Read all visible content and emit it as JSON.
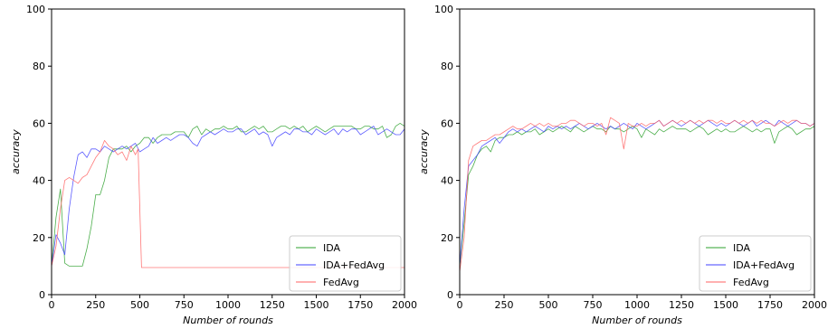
{
  "chart_data": [
    {
      "type": "line",
      "xlabel": "Number of rounds",
      "ylabel": "accuracy",
      "xlim": [
        0,
        2000
      ],
      "ylim": [
        0,
        100
      ],
      "xticks": [
        0,
        250,
        500,
        750,
        1000,
        1250,
        1500,
        1750,
        2000
      ],
      "yticks": [
        0,
        20,
        40,
        60,
        80,
        100
      ],
      "grid": false,
      "legend_position": "lower-right",
      "series": [
        {
          "name": "IDA",
          "color": "#2ca02c",
          "x": [
            0,
            25,
            50,
            75,
            100,
            125,
            150,
            175,
            200,
            225,
            250,
            275,
            300,
            325,
            350,
            375,
            400,
            425,
            450,
            475,
            500,
            525,
            550,
            575,
            600,
            625,
            650,
            675,
            700,
            725,
            750,
            775,
            800,
            825,
            850,
            875,
            900,
            925,
            950,
            975,
            1000,
            1025,
            1050,
            1075,
            1100,
            1125,
            1150,
            1175,
            1200,
            1225,
            1250,
            1275,
            1300,
            1325,
            1350,
            1375,
            1400,
            1425,
            1450,
            1475,
            1500,
            1525,
            1550,
            1575,
            1600,
            1625,
            1650,
            1675,
            1700,
            1725,
            1750,
            1775,
            1800,
            1825,
            1850,
            1875,
            1900,
            1925,
            1950,
            1975,
            2000
          ],
          "y": [
            10,
            27,
            37,
            11,
            10,
            10,
            10,
            10,
            16,
            24,
            35,
            35,
            40,
            48,
            51,
            51,
            51,
            52,
            50,
            52,
            53,
            55,
            55,
            53,
            55,
            56,
            56,
            56,
            57,
            57,
            57,
            55,
            58,
            59,
            56,
            58,
            57,
            58,
            58,
            59,
            58,
            58,
            59,
            57,
            57,
            58,
            59,
            58,
            59,
            57,
            57,
            58,
            59,
            59,
            58,
            59,
            58,
            59,
            57,
            58,
            59,
            58,
            57,
            58,
            59,
            59,
            59,
            59,
            59,
            58,
            58,
            59,
            59,
            58,
            58,
            59,
            55,
            56,
            59,
            60,
            59
          ]
        },
        {
          "name": "IDA+FedAvg",
          "color": "#4040ff",
          "x": [
            0,
            25,
            50,
            75,
            100,
            125,
            150,
            175,
            200,
            225,
            250,
            275,
            300,
            325,
            350,
            375,
            400,
            425,
            450,
            475,
            500,
            525,
            550,
            575,
            600,
            625,
            650,
            675,
            700,
            725,
            750,
            775,
            800,
            825,
            850,
            875,
            900,
            925,
            950,
            975,
            1000,
            1025,
            1050,
            1075,
            1100,
            1125,
            1150,
            1175,
            1200,
            1225,
            1250,
            1275,
            1300,
            1325,
            1350,
            1375,
            1400,
            1425,
            1450,
            1475,
            1500,
            1525,
            1550,
            1575,
            1600,
            1625,
            1650,
            1675,
            1700,
            1725,
            1750,
            1775,
            1800,
            1825,
            1850,
            1875,
            1900,
            1925,
            1950,
            1975,
            2000
          ],
          "y": [
            10,
            21,
            18,
            14,
            30,
            41,
            49,
            50,
            48,
            51,
            51,
            50,
            52,
            51,
            50,
            51,
            52,
            51,
            52,
            53,
            50,
            51,
            52,
            55,
            53,
            54,
            55,
            54,
            55,
            56,
            56,
            55,
            53,
            52,
            55,
            56,
            57,
            56,
            57,
            58,
            57,
            57,
            58,
            58,
            56,
            57,
            58,
            56,
            57,
            56,
            52,
            55,
            56,
            57,
            56,
            58,
            58,
            57,
            57,
            56,
            58,
            57,
            56,
            57,
            58,
            56,
            58,
            57,
            58,
            58,
            56,
            57,
            58,
            59,
            56,
            57,
            58,
            57,
            56,
            56,
            58
          ]
        },
        {
          "name": "FedAvg",
          "color": "#ff6060",
          "x": [
            0,
            25,
            50,
            75,
            100,
            125,
            150,
            175,
            200,
            225,
            250,
            275,
            300,
            325,
            350,
            375,
            400,
            425,
            450,
            475,
            490,
            510,
            525,
            550,
            600,
            700,
            800,
            900,
            1000,
            1250,
            1500,
            1750,
            2000
          ],
          "y": [
            10,
            17,
            30,
            40,
            41,
            40,
            39,
            41,
            42,
            45,
            48,
            50,
            54,
            52,
            51,
            49,
            50,
            47,
            52,
            49,
            51,
            9.5,
            9.5,
            9.5,
            9.5,
            9.5,
            9.5,
            9.5,
            9.5,
            9.5,
            9.5,
            9.5,
            9.5
          ]
        }
      ]
    },
    {
      "type": "line",
      "xlabel": "Number of rounds",
      "ylabel": "accuracy",
      "xlim": [
        0,
        2000
      ],
      "ylim": [
        0,
        100
      ],
      "xticks": [
        0,
        250,
        500,
        750,
        1000,
        1250,
        1500,
        1750,
        2000
      ],
      "yticks": [
        0,
        20,
        40,
        60,
        80,
        100
      ],
      "grid": false,
      "legend_position": "lower-right",
      "series": [
        {
          "name": "IDA",
          "color": "#2ca02c",
          "x": [
            0,
            25,
            50,
            75,
            100,
            125,
            150,
            175,
            200,
            225,
            250,
            275,
            300,
            325,
            350,
            375,
            400,
            425,
            450,
            475,
            500,
            525,
            550,
            575,
            600,
            625,
            650,
            675,
            700,
            725,
            750,
            775,
            800,
            825,
            850,
            875,
            900,
            925,
            950,
            975,
            1000,
            1025,
            1050,
            1075,
            1100,
            1125,
            1150,
            1175,
            1200,
            1225,
            1250,
            1275,
            1300,
            1325,
            1350,
            1375,
            1400,
            1425,
            1450,
            1475,
            1500,
            1525,
            1550,
            1575,
            1600,
            1625,
            1650,
            1675,
            1700,
            1725,
            1750,
            1775,
            1800,
            1825,
            1850,
            1875,
            1900,
            1925,
            1950,
            1975,
            2000
          ],
          "y": [
            10,
            25,
            42,
            45,
            49,
            51,
            52,
            50,
            54,
            55,
            55,
            56,
            56,
            57,
            56,
            57,
            57,
            58,
            56,
            57,
            58,
            57,
            58,
            59,
            58,
            57,
            59,
            58,
            57,
            58,
            59,
            58,
            58,
            57,
            59,
            58,
            58,
            57,
            58,
            59,
            58,
            55,
            58,
            57,
            56,
            58,
            57,
            58,
            59,
            58,
            58,
            58,
            57,
            58,
            59,
            58,
            56,
            57,
            58,
            57,
            58,
            57,
            57,
            58,
            59,
            58,
            57,
            58,
            57,
            58,
            58,
            53,
            57,
            58,
            59,
            58,
            56,
            57,
            58,
            58,
            59
          ]
        },
        {
          "name": "IDA+FedAvg",
          "color": "#4040ff",
          "x": [
            0,
            25,
            50,
            75,
            100,
            125,
            150,
            175,
            200,
            225,
            250,
            275,
            300,
            325,
            350,
            375,
            400,
            425,
            450,
            475,
            500,
            525,
            550,
            575,
            600,
            625,
            650,
            675,
            700,
            725,
            750,
            775,
            800,
            825,
            850,
            875,
            900,
            925,
            950,
            975,
            1000,
            1025,
            1050,
            1075,
            1100,
            1125,
            1150,
            1175,
            1200,
            1225,
            1250,
            1275,
            1300,
            1325,
            1350,
            1375,
            1400,
            1425,
            1450,
            1475,
            1500,
            1525,
            1550,
            1575,
            1600,
            1625,
            1650,
            1675,
            1700,
            1725,
            1750,
            1775,
            1800,
            1825,
            1850,
            1875,
            1900,
            1925,
            1950,
            1975,
            2000
          ],
          "y": [
            10,
            30,
            45,
            47,
            49,
            52,
            53,
            54,
            55,
            53,
            55,
            57,
            58,
            57,
            58,
            57,
            58,
            59,
            58,
            57,
            59,
            58,
            59,
            58,
            59,
            58,
            59,
            60,
            59,
            58,
            59,
            60,
            59,
            58,
            59,
            58,
            59,
            60,
            59,
            58,
            60,
            59,
            58,
            59,
            60,
            61,
            59,
            60,
            61,
            60,
            59,
            60,
            61,
            60,
            59,
            60,
            61,
            60,
            59,
            60,
            59,
            60,
            61,
            60,
            59,
            60,
            61,
            59,
            60,
            61,
            60,
            59,
            61,
            60,
            59,
            60,
            61,
            60,
            60,
            59,
            60
          ]
        },
        {
          "name": "FedAvg",
          "color": "#ff6060",
          "x": [
            0,
            25,
            50,
            75,
            100,
            125,
            150,
            175,
            200,
            225,
            250,
            275,
            300,
            325,
            350,
            375,
            400,
            425,
            450,
            475,
            500,
            525,
            550,
            575,
            600,
            625,
            650,
            675,
            700,
            725,
            750,
            775,
            800,
            825,
            850,
            875,
            900,
            925,
            950,
            975,
            1000,
            1025,
            1050,
            1075,
            1100,
            1125,
            1150,
            1175,
            1200,
            1225,
            1250,
            1275,
            1300,
            1325,
            1350,
            1375,
            1400,
            1425,
            1450,
            1475,
            1500,
            1525,
            1550,
            1575,
            1600,
            1625,
            1650,
            1675,
            1700,
            1725,
            1750,
            1775,
            1800,
            1825,
            1850,
            1875,
            1900,
            1925,
            1950,
            1975,
            2000
          ],
          "y": [
            8,
            20,
            47,
            52,
            53,
            54,
            54,
            55,
            56,
            56,
            57,
            58,
            59,
            58,
            58,
            59,
            60,
            59,
            60,
            59,
            60,
            59,
            59,
            60,
            60,
            61,
            61,
            60,
            59,
            60,
            60,
            59,
            60,
            56,
            62,
            61,
            60,
            51,
            60,
            59,
            59,
            60,
            59,
            60,
            60,
            61,
            59,
            60,
            61,
            60,
            61,
            60,
            61,
            60,
            61,
            60,
            61,
            61,
            60,
            61,
            60,
            60,
            61,
            60,
            61,
            60,
            61,
            60,
            61,
            60,
            60,
            59,
            60,
            61,
            60,
            61,
            61,
            60,
            60,
            59,
            60
          ]
        }
      ]
    }
  ]
}
